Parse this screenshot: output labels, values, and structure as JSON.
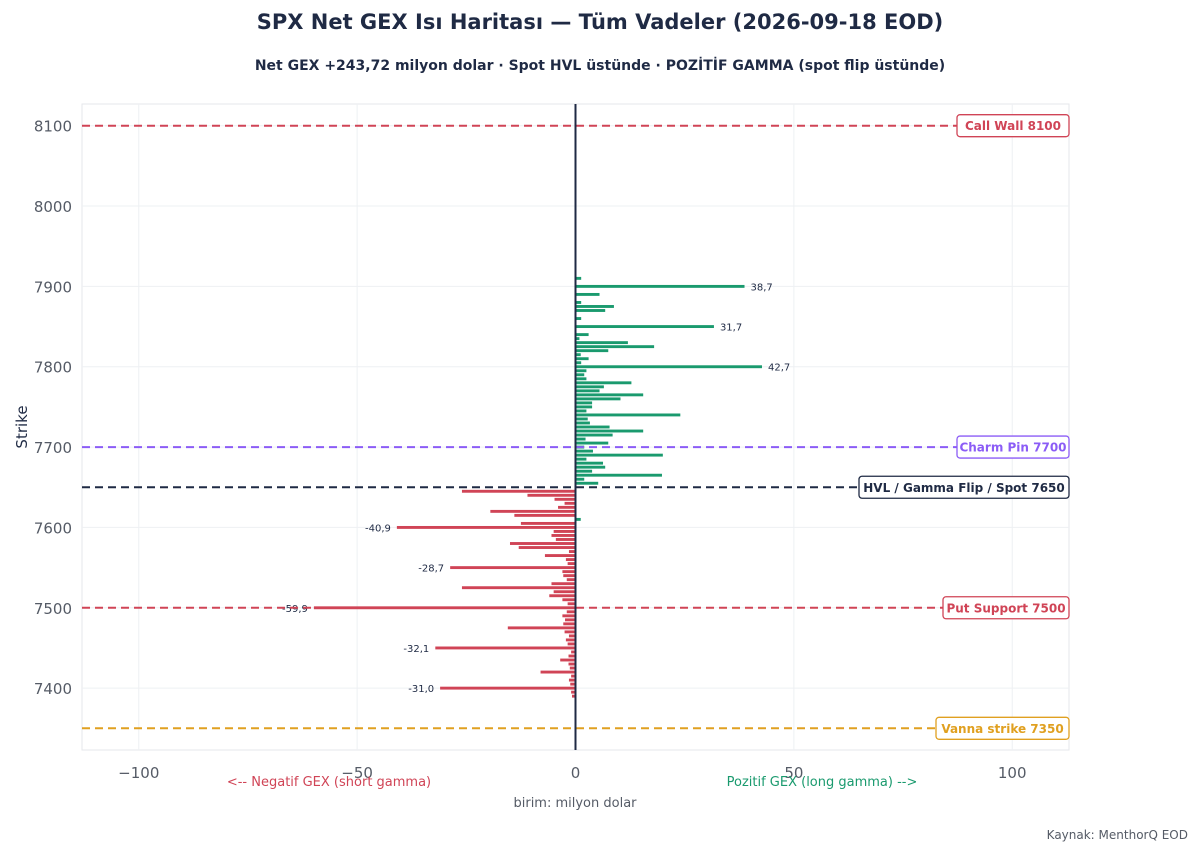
{
  "title": "SPX Net GEX Isı Haritası — Tüm Vadeler  (2026-09-18 EOD)",
  "subtitle": "Net GEX +243,72 milyon dolar · Spot HVL üstünde · POZİTİF GAMMA (spot flip üstünde)",
  "source": "Kaynak: MenthorQ EOD",
  "chart_data": {
    "type": "bar",
    "orientation": "horizontal",
    "ylabel": "Strike",
    "xlabel": "birim: milyon dolar",
    "xlim": [
      -113,
      113
    ],
    "ylim": [
      7323,
      8127
    ],
    "x_ticks": [
      -100,
      -50,
      0,
      50,
      100
    ],
    "x_tick_labels": [
      "−100",
      "−50",
      "0",
      "50",
      "100"
    ],
    "y_ticks": [
      7400,
      7500,
      7600,
      7700,
      7800,
      7900,
      8000,
      8100
    ],
    "neg_axis_note": "<-- Negatif GEX (short gamma)",
    "pos_axis_note": "Pozitif GEX (long gamma) -->",
    "colors": {
      "positive": "#1a9a6e",
      "negative": "#d04456",
      "zero_line": "#1f2a44"
    },
    "levels": [
      {
        "strike": 8100,
        "label": "Call Wall 8100",
        "color": "#d04456"
      },
      {
        "strike": 7700,
        "label": "Charm Pin 7700",
        "color": "#8b5cf6"
      },
      {
        "strike": 7650,
        "label": "HVL / Gamma Flip / Spot 7650",
        "color": "#1f2a44"
      },
      {
        "strike": 7500,
        "label": "Put Support 7500",
        "color": "#d04456"
      },
      {
        "strike": 7350,
        "label": "Vanna strike 7350",
        "color": "#e0a020"
      }
    ],
    "bars": [
      {
        "strike": 7390,
        "value": -0.8
      },
      {
        "strike": 7395,
        "value": -1.0
      },
      {
        "strike": 7400,
        "value": -31.0,
        "label": "-31,0"
      },
      {
        "strike": 7405,
        "value": -1.2
      },
      {
        "strike": 7410,
        "value": -1.5
      },
      {
        "strike": 7415,
        "value": -1.0
      },
      {
        "strike": 7420,
        "value": -8.0
      },
      {
        "strike": 7425,
        "value": -1.3
      },
      {
        "strike": 7430,
        "value": -1.6
      },
      {
        "strike": 7435,
        "value": -3.5
      },
      {
        "strike": 7440,
        "value": -1.6
      },
      {
        "strike": 7445,
        "value": -1.0
      },
      {
        "strike": 7450,
        "value": -32.1,
        "label": "-32,1"
      },
      {
        "strike": 7455,
        "value": -1.8
      },
      {
        "strike": 7460,
        "value": -2.2
      },
      {
        "strike": 7465,
        "value": -1.5
      },
      {
        "strike": 7470,
        "value": -2.5
      },
      {
        "strike": 7475,
        "value": -15.5
      },
      {
        "strike": 7480,
        "value": -2.8
      },
      {
        "strike": 7485,
        "value": -2.4
      },
      {
        "strike": 7490,
        "value": -3.0
      },
      {
        "strike": 7495,
        "value": -2.0
      },
      {
        "strike": 7500,
        "value": -59.9,
        "label": "-59,9"
      },
      {
        "strike": 7505,
        "value": -1.8
      },
      {
        "strike": 7510,
        "value": -3.0
      },
      {
        "strike": 7515,
        "value": -6.0
      },
      {
        "strike": 7520,
        "value": -5.0
      },
      {
        "strike": 7525,
        "value": -26.0
      },
      {
        "strike": 7530,
        "value": -5.5
      },
      {
        "strike": 7535,
        "value": -2.0
      },
      {
        "strike": 7540,
        "value": -2.8
      },
      {
        "strike": 7545,
        "value": -3.0
      },
      {
        "strike": 7550,
        "value": -28.7,
        "label": "-28,7"
      },
      {
        "strike": 7555,
        "value": -1.8
      },
      {
        "strike": 7560,
        "value": -2.2
      },
      {
        "strike": 7565,
        "value": -7.0
      },
      {
        "strike": 7570,
        "value": -1.5
      },
      {
        "strike": 7575,
        "value": -13.0
      },
      {
        "strike": 7580,
        "value": -15.0
      },
      {
        "strike": 7585,
        "value": -4.5
      },
      {
        "strike": 7590,
        "value": -5.5
      },
      {
        "strike": 7595,
        "value": -5.0
      },
      {
        "strike": 7600,
        "value": -40.9,
        "label": "-40,9"
      },
      {
        "strike": 7605,
        "value": -12.5
      },
      {
        "strike": 7610,
        "value": 1.2
      },
      {
        "strike": 7615,
        "value": -14.0
      },
      {
        "strike": 7620,
        "value": -19.5
      },
      {
        "strike": 7625,
        "value": -4.0
      },
      {
        "strike": 7630,
        "value": -2.5
      },
      {
        "strike": 7635,
        "value": -4.8
      },
      {
        "strike": 7640,
        "value": -11.0
      },
      {
        "strike": 7645,
        "value": -26.0
      },
      {
        "strike": 7655,
        "value": 5.2
      },
      {
        "strike": 7660,
        "value": 2.0
      },
      {
        "strike": 7665,
        "value": 19.8
      },
      {
        "strike": 7670,
        "value": 3.8
      },
      {
        "strike": 7675,
        "value": 6.8
      },
      {
        "strike": 7680,
        "value": 6.3
      },
      {
        "strike": 7685,
        "value": 2.5
      },
      {
        "strike": 7690,
        "value": 20.0
      },
      {
        "strike": 7695,
        "value": 4.0
      },
      {
        "strike": 7700,
        "value": 2.0
      },
      {
        "strike": 7705,
        "value": 7.5
      },
      {
        "strike": 7710,
        "value": 2.3
      },
      {
        "strike": 7715,
        "value": 8.5
      },
      {
        "strike": 7720,
        "value": 15.5
      },
      {
        "strike": 7725,
        "value": 7.8
      },
      {
        "strike": 7730,
        "value": 3.3
      },
      {
        "strike": 7735,
        "value": 2.8
      },
      {
        "strike": 7740,
        "value": 24.0
      },
      {
        "strike": 7745,
        "value": 2.5
      },
      {
        "strike": 7750,
        "value": 3.8
      },
      {
        "strike": 7755,
        "value": 3.8
      },
      {
        "strike": 7760,
        "value": 10.3
      },
      {
        "strike": 7765,
        "value": 15.5
      },
      {
        "strike": 7770,
        "value": 5.5
      },
      {
        "strike": 7775,
        "value": 6.5
      },
      {
        "strike": 7780,
        "value": 12.8
      },
      {
        "strike": 7785,
        "value": 2.5
      },
      {
        "strike": 7790,
        "value": 2.0
      },
      {
        "strike": 7795,
        "value": 2.5
      },
      {
        "strike": 7800,
        "value": 42.7,
        "label": "42,7"
      },
      {
        "strike": 7805,
        "value": 1.3
      },
      {
        "strike": 7810,
        "value": 3.0
      },
      {
        "strike": 7815,
        "value": 1.2
      },
      {
        "strike": 7820,
        "value": 7.5
      },
      {
        "strike": 7825,
        "value": 18.0
      },
      {
        "strike": 7830,
        "value": 12.0
      },
      {
        "strike": 7835,
        "value": 0.9
      },
      {
        "strike": 7840,
        "value": 3.0
      },
      {
        "strike": 7850,
        "value": 31.7,
        "label": "31,7"
      },
      {
        "strike": 7860,
        "value": 1.3
      },
      {
        "strike": 7870,
        "value": 6.8
      },
      {
        "strike": 7875,
        "value": 8.8
      },
      {
        "strike": 7880,
        "value": 1.3
      },
      {
        "strike": 7890,
        "value": 5.5
      },
      {
        "strike": 7900,
        "value": 38.7,
        "label": "38,7"
      },
      {
        "strike": 7910,
        "value": 1.3
      }
    ]
  }
}
